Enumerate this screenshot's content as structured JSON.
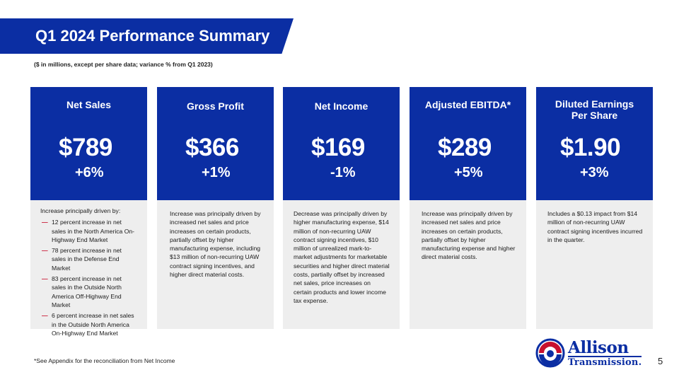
{
  "title": "Q1 2024 Performance Summary",
  "subtitle": "($ in millions, except per share data; variance % from Q1 2023)",
  "colors": {
    "brand_blue": "#0b2ea3",
    "panel_gray": "#eeeeee",
    "accent_red": "#c8102e"
  },
  "cards": [
    {
      "label": "Net Sales",
      "value": "$789",
      "change": "+6%",
      "intro": "Increase principally driven by:",
      "bullets": [
        "12 percent increase in net sales in the North America On-Highway End Market",
        "78 percent increase in net sales in the Defense End Market",
        "83 percent increase in net sales in the Outside North America Off-Highway End Market",
        "6 percent increase in net sales in the Outside North America On-Highway End Market"
      ]
    },
    {
      "label": "Gross Profit",
      "value": "$366",
      "change": "+1%",
      "text": "Increase was principally driven by increased net sales and price increases on certain products, partially offset by higher manufacturing expense, including $13 million of non-recurring UAW contract signing incentives, and higher direct material costs."
    },
    {
      "label": "Net Income",
      "value": "$169",
      "change": "-1%",
      "text": "Decrease was principally driven by higher manufacturing expense, $14 million of non-recurring UAW contract signing incentives, $10 million of unrealized mark-to-market adjustments for marketable securities and higher direct material costs, partially offset by increased net sales, price increases on certain products and lower income tax expense."
    },
    {
      "label": "Adjusted EBITDA*",
      "value": "$289",
      "change": "+5%",
      "text": "Increase was principally driven by increased net sales and price increases on certain products, partially offset by higher manufacturing expense and higher direct material costs."
    },
    {
      "label_line1": "Diluted Earnings",
      "label_line2": "Per Share",
      "value": "$1.90",
      "change": "+3%",
      "text": "Includes a $0.13 impact from $14 million of non-recurring UAW contract signing incentives incurred in the quarter."
    }
  ],
  "footnote": "*See Appendix for the reconciliation from Net Income",
  "logo": {
    "word1": "Allison",
    "word2": "Transmission."
  },
  "page_number": "5"
}
